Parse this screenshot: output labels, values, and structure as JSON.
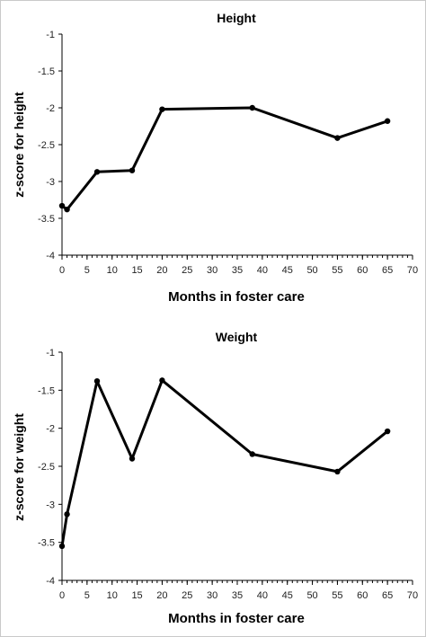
{
  "chart_data": [
    {
      "type": "line",
      "title": "Height",
      "xlabel": "Months in foster care",
      "ylabel": "z-score for height",
      "xlim": [
        0,
        70
      ],
      "ylim": [
        -4,
        -1
      ],
      "xticks": [
        "0",
        "5",
        "10",
        "15",
        "20",
        "25",
        "30",
        "35",
        "40",
        "45",
        "50",
        "55",
        "60",
        "65",
        "70"
      ],
      "yticks": [
        "-1",
        "-1.5",
        "-2",
        "-2.5",
        "-3",
        "-3.5",
        "-4"
      ],
      "grid": false,
      "series": [
        {
          "x": [
            0,
            1,
            7,
            14,
            20,
            38,
            55,
            65
          ],
          "y": [
            -3.33,
            -3.38,
            -2.87,
            -2.85,
            -2.02,
            -2.0,
            -2.41,
            -2.18
          ]
        }
      ]
    },
    {
      "type": "line",
      "title": "Weight",
      "xlabel": "Months in foster care",
      "ylabel": "z-score for weight",
      "xlim": [
        0,
        70
      ],
      "ylim": [
        -4,
        -1
      ],
      "xticks": [
        "0",
        "5",
        "10",
        "15",
        "20",
        "25",
        "30",
        "35",
        "40",
        "45",
        "50",
        "55",
        "60",
        "65",
        "70"
      ],
      "yticks": [
        "-1",
        "-1.5",
        "-2",
        "-2.5",
        "-3",
        "-3.5",
        "-4"
      ],
      "grid": false,
      "series": [
        {
          "x": [
            0,
            1,
            7,
            14,
            20,
            38,
            55,
            65
          ],
          "y": [
            -3.55,
            -3.13,
            -1.38,
            -2.4,
            -1.37,
            -2.34,
            -2.57,
            -2.04
          ]
        }
      ]
    }
  ]
}
